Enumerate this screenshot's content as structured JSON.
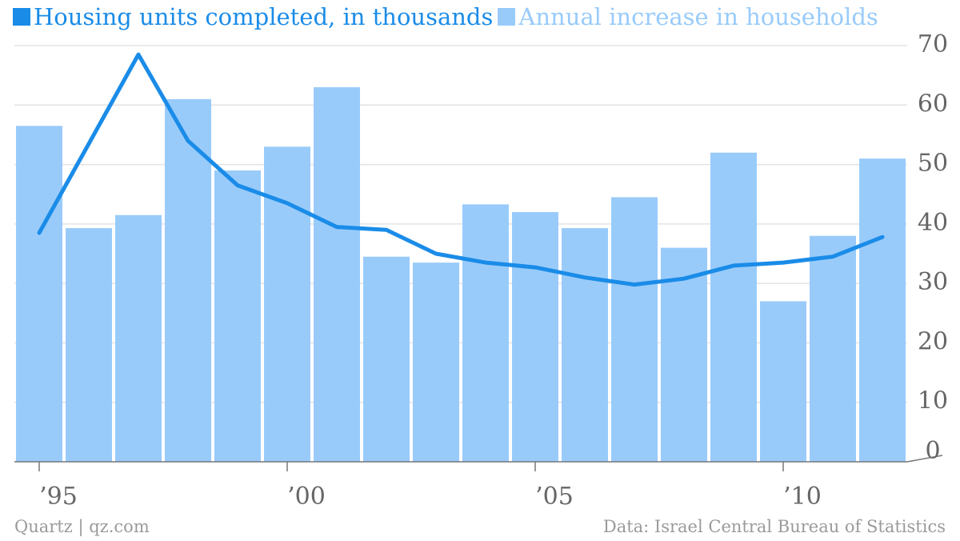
{
  "chart_data": {
    "type": "bar",
    "categories": [
      "1995",
      "1996",
      "1997",
      "1998",
      "1999",
      "2000",
      "2001",
      "2002",
      "2003",
      "2004",
      "2005",
      "2006",
      "2007",
      "2008",
      "2009",
      "2010",
      "2011",
      "2012"
    ],
    "series": [
      {
        "name": "Housing units completed, in thousands",
        "type": "line",
        "color": "#1a8ce8",
        "values": [
          38.5,
          53.5,
          68.5,
          54,
          46.5,
          43.5,
          39.5,
          39,
          35,
          33.5,
          32.7,
          31,
          29.8,
          30.8,
          33,
          33.5,
          34.5,
          37.8
        ]
      },
      {
        "name": "Annual increase in households",
        "type": "bar",
        "color": "#99cbfa",
        "values": [
          56.5,
          39.3,
          41.5,
          61,
          49,
          53,
          63,
          34.5,
          33.5,
          43.3,
          42,
          39.3,
          44.5,
          36,
          52,
          27,
          38,
          51
        ]
      }
    ],
    "x_tick_labels": [
      {
        "category": "1995",
        "label": "’95"
      },
      {
        "category": "2000",
        "label": "’00"
      },
      {
        "category": "2005",
        "label": "’05"
      },
      {
        "category": "2010",
        "label": "’10"
      }
    ],
    "y_ticks": [
      0,
      10,
      20,
      30,
      40,
      50,
      60,
      70
    ],
    "ylim": [
      0,
      70
    ],
    "y_axis_side": "right",
    "grid": true,
    "legend": "top-left"
  },
  "footer": {
    "source_left": "Quartz | qz.com",
    "source_right": "Data: Israel Central Bureau of Statistics"
  },
  "colors": {
    "line": "#1a8ce8",
    "bar": "#99cbfa",
    "grid": "#e3e3e3",
    "axis": "#777777",
    "tick_text": "#666666",
    "footer_text": "#9a9a9a"
  }
}
